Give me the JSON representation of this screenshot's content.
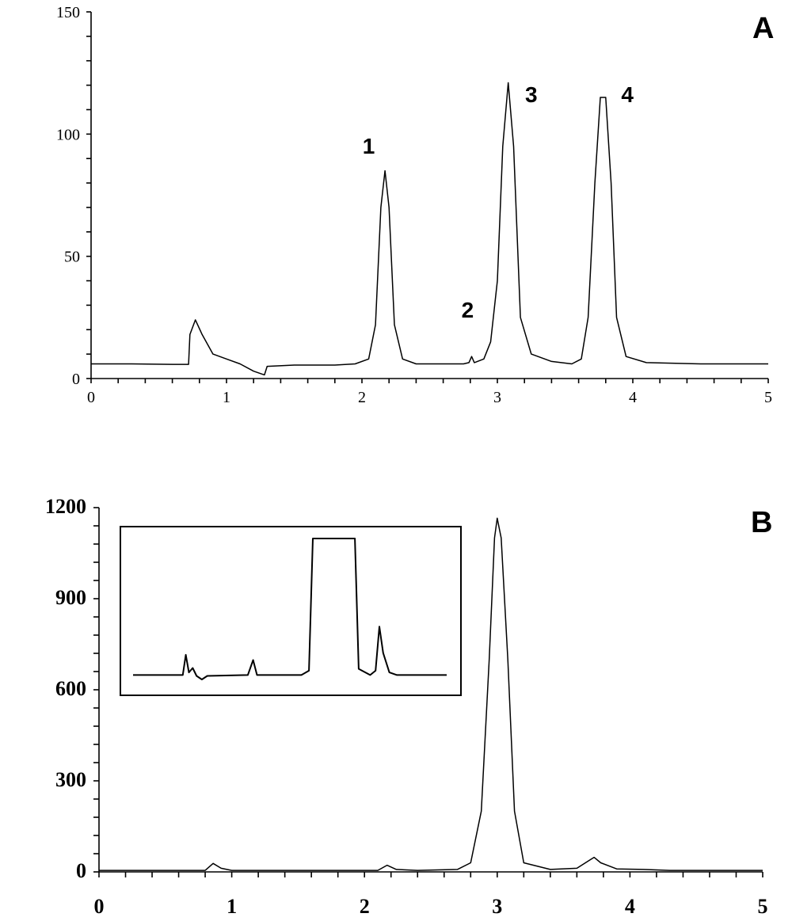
{
  "chart_data": [
    {
      "type": "line",
      "panel_label": "A",
      "xlim": [
        0,
        5
      ],
      "ylim": [
        0,
        150
      ],
      "x_ticks": [
        "0",
        "1",
        "2",
        "3",
        "4",
        "5"
      ],
      "y_ticks": [
        "0",
        "50",
        "100",
        "150"
      ],
      "x_minor_step": 0.2,
      "y_minor_step": 10,
      "grid": false,
      "peak_labels": [
        {
          "text": "1",
          "x": 2.05,
          "y": 92
        },
        {
          "text": "2",
          "x": 2.78,
          "y": 25
        },
        {
          "text": "3",
          "x": 3.25,
          "y": 113
        },
        {
          "text": "4",
          "x": 3.96,
          "y": 113
        }
      ],
      "peaks": [
        {
          "label": "1",
          "retention_time": 2.17,
          "height": 85
        },
        {
          "label": "2",
          "retention_time": 2.81,
          "height": 9
        },
        {
          "label": "3",
          "retention_time": 3.08,
          "height": 121
        },
        {
          "label": "4",
          "retention_time": 3.78,
          "height": 116
        }
      ],
      "series": [
        {
          "points": [
            [
              0,
              6
            ],
            [
              0.3,
              6
            ],
            [
              0.6,
              5.8
            ],
            [
              0.72,
              5.8
            ],
            [
              0.73,
              18
            ],
            [
              0.77,
              24
            ],
            [
              0.82,
              18
            ],
            [
              0.9,
              10
            ],
            [
              1.0,
              8
            ],
            [
              1.1,
              6
            ],
            [
              1.2,
              3
            ],
            [
              1.28,
              1.5
            ],
            [
              1.3,
              5
            ],
            [
              1.5,
              5.5
            ],
            [
              1.8,
              5.5
            ],
            [
              1.95,
              6
            ],
            [
              2.05,
              8
            ],
            [
              2.1,
              22
            ],
            [
              2.14,
              70
            ],
            [
              2.17,
              85
            ],
            [
              2.2,
              70
            ],
            [
              2.24,
              22
            ],
            [
              2.3,
              8
            ],
            [
              2.4,
              6
            ],
            [
              2.6,
              6
            ],
            [
              2.75,
              6
            ],
            [
              2.79,
              6.5
            ],
            [
              2.81,
              9
            ],
            [
              2.83,
              6.5
            ],
            [
              2.9,
              8
            ],
            [
              2.95,
              15
            ],
            [
              3.0,
              40
            ],
            [
              3.04,
              95
            ],
            [
              3.08,
              121
            ],
            [
              3.12,
              95
            ],
            [
              3.17,
              25
            ],
            [
              3.25,
              10
            ],
            [
              3.4,
              7
            ],
            [
              3.55,
              6
            ],
            [
              3.62,
              8
            ],
            [
              3.67,
              25
            ],
            [
              3.72,
              80
            ],
            [
              3.76,
              115
            ],
            [
              3.8,
              115
            ],
            [
              3.84,
              80
            ],
            [
              3.88,
              25
            ],
            [
              3.95,
              9
            ],
            [
              4.1,
              6.5
            ],
            [
              4.5,
              6
            ],
            [
              5.0,
              6
            ]
          ]
        }
      ]
    },
    {
      "type": "line",
      "panel_label": "B",
      "xlim": [
        0,
        5
      ],
      "ylim": [
        0,
        1200
      ],
      "x_ticks": [
        "0",
        "1",
        "2",
        "3",
        "4",
        "5"
      ],
      "y_ticks": [
        "0",
        "300",
        "600",
        "900",
        "1200"
      ],
      "x_minor_step": 0.2,
      "y_minor_step": 60,
      "grid": false,
      "series": [
        {
          "points": [
            [
              0,
              5
            ],
            [
              0.8,
              5
            ],
            [
              0.86,
              28
            ],
            [
              0.92,
              12
            ],
            [
              1.0,
              5
            ],
            [
              1.8,
              5
            ],
            [
              2.1,
              5
            ],
            [
              2.17,
              22
            ],
            [
              2.24,
              8
            ],
            [
              2.4,
              5
            ],
            [
              2.7,
              8
            ],
            [
              2.8,
              30
            ],
            [
              2.88,
              200
            ],
            [
              2.94,
              700
            ],
            [
              2.98,
              1100
            ],
            [
              3.0,
              1165
            ],
            [
              3.03,
              1100
            ],
            [
              3.08,
              700
            ],
            [
              3.13,
              200
            ],
            [
              3.2,
              30
            ],
            [
              3.4,
              8
            ],
            [
              3.6,
              12
            ],
            [
              3.7,
              40
            ],
            [
              3.73,
              48
            ],
            [
              3.78,
              30
            ],
            [
              3.9,
              10
            ],
            [
              4.1,
              8
            ],
            [
              4.3,
              5
            ],
            [
              5.0,
              5
            ]
          ]
        }
      ],
      "inset": {
        "description_points": [
          [
            0,
            5
          ],
          [
            0.65,
            5
          ],
          [
            0.69,
            28
          ],
          [
            0.73,
            8
          ],
          [
            0.78,
            13
          ],
          [
            0.83,
            4
          ],
          [
            0.9,
            0
          ],
          [
            0.97,
            4
          ],
          [
            1.5,
            5
          ],
          [
            1.57,
            22
          ],
          [
            1.62,
            5
          ],
          [
            2.2,
            5
          ],
          [
            2.3,
            10
          ],
          [
            2.35,
            160
          ],
          [
            2.9,
            160
          ],
          [
            2.95,
            12
          ],
          [
            3.1,
            5
          ],
          [
            3.17,
            10
          ],
          [
            3.22,
            60
          ],
          [
            3.27,
            30
          ],
          [
            3.35,
            8
          ],
          [
            3.45,
            5
          ],
          [
            4.1,
            5
          ]
        ]
      }
    }
  ]
}
